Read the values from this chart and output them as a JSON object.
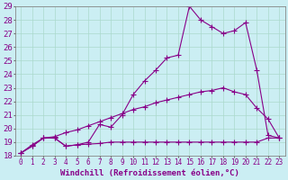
{
  "xlabel": "Windchill (Refroidissement éolien,°C)",
  "bg_color": "#cbeef3",
  "grid_color": "#aad9cc",
  "line_color": "#880088",
  "xlim": [
    -0.5,
    23.5
  ],
  "ylim": [
    18,
    29
  ],
  "xticks": [
    0,
    1,
    2,
    3,
    4,
    5,
    6,
    7,
    8,
    9,
    10,
    11,
    12,
    13,
    14,
    15,
    16,
    17,
    18,
    19,
    20,
    21,
    22,
    23
  ],
  "yticks": [
    18,
    19,
    20,
    21,
    22,
    23,
    24,
    25,
    26,
    27,
    28,
    29
  ],
  "line1_x": [
    0,
    1,
    2,
    3,
    4,
    5,
    6,
    7,
    8,
    9,
    10,
    11,
    12,
    13,
    14,
    15,
    16,
    17,
    18,
    19,
    20,
    21,
    22,
    23
  ],
  "line1_y": [
    18.2,
    18.8,
    19.3,
    19.3,
    18.7,
    18.8,
    19.0,
    20.3,
    20.1,
    21.0,
    22.5,
    23.5,
    24.3,
    25.2,
    25.4,
    29.0,
    28.0,
    27.5,
    27.0,
    27.2,
    27.8,
    24.3,
    19.5,
    19.3
  ],
  "line2_x": [
    0,
    1,
    2,
    3,
    4,
    5,
    6,
    7,
    8,
    9,
    10,
    11,
    12,
    13,
    14,
    15,
    16,
    17,
    18,
    19,
    20,
    21,
    22,
    23
  ],
  "line2_y": [
    18.2,
    18.7,
    19.3,
    19.4,
    19.7,
    19.9,
    20.2,
    20.5,
    20.8,
    21.1,
    21.4,
    21.6,
    21.9,
    22.1,
    22.3,
    22.5,
    22.7,
    22.8,
    23.0,
    22.7,
    22.5,
    21.5,
    20.7,
    19.3
  ],
  "line3_x": [
    0,
    1,
    2,
    3,
    4,
    5,
    6,
    7,
    8,
    9,
    10,
    11,
    12,
    13,
    14,
    15,
    16,
    17,
    18,
    19,
    20,
    21,
    22,
    23
  ],
  "line3_y": [
    18.2,
    18.7,
    19.3,
    19.3,
    18.7,
    18.8,
    18.85,
    18.9,
    19.0,
    19.0,
    19.0,
    19.0,
    19.0,
    19.0,
    19.0,
    19.0,
    19.0,
    19.0,
    19.0,
    19.0,
    19.0,
    19.0,
    19.3,
    19.3
  ],
  "xlabel_fontsize": 6.5,
  "ytick_fontsize": 6.5,
  "xtick_fontsize": 5.5,
  "lw": 0.8,
  "ms": 2.5
}
